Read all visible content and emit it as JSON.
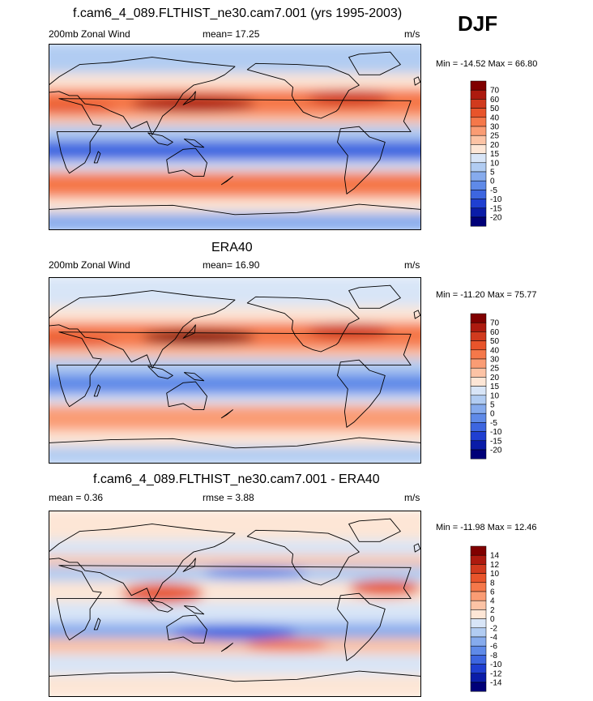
{
  "header": {
    "season": "DJF"
  },
  "chart_data": [
    {
      "type": "heatmap",
      "title": "f.cam6_4_089.FLTHIST_ne30.cam7.001 (yrs 1995-2003)",
      "left_label": "200mb Zonal Wind",
      "center_label": "mean=  17.25",
      "right_label": "m/s",
      "minmax_label": "Min = -14.52 Max =  66.80",
      "min": -14.52,
      "max": 66.8,
      "mean": 17.25,
      "colorbar_levels": [
        "70",
        "60",
        "50",
        "40",
        "30",
        "25",
        "20",
        "15",
        "10",
        "5",
        "0",
        "-5",
        "-10",
        "-15",
        "-20"
      ],
      "colorbar_colors": [
        "#800000",
        "#ad1a0f",
        "#d13a1e",
        "#e8542b",
        "#f5784a",
        "#fa9c74",
        "#fcc3a5",
        "#fde6d6",
        "#d8e5f7",
        "#b1ccf2",
        "#86abed",
        "#5f8ae8",
        "#3d66e0",
        "#1f3fd1",
        "#0a1ca8",
        "#000078"
      ],
      "bands": [
        {
          "lat_range": [
            60,
            90
          ],
          "color": "#b1ccf2"
        },
        {
          "lat_range": [
            45,
            60
          ],
          "color": "#fde6d6"
        },
        {
          "lat_range": [
            20,
            45
          ],
          "color": "#f5784a"
        },
        {
          "lat_range": [
            10,
            20
          ],
          "color": "#fcc3a5"
        },
        {
          "lat_range": [
            -5,
            10
          ],
          "color": "#b1ccf2"
        },
        {
          "lat_range": [
            -25,
            -5
          ],
          "color": "#3d66e0"
        },
        {
          "lat_range": [
            -35,
            -25
          ],
          "color": "#d8e5f7"
        },
        {
          "lat_range": [
            -60,
            -35
          ],
          "color": "#f5784a"
        },
        {
          "lat_range": [
            -75,
            -60
          ],
          "color": "#fde6d6"
        },
        {
          "lat_range": [
            -90,
            -75
          ],
          "color": "#86abed"
        }
      ],
      "jets": [
        {
          "lon": 140,
          "lat": 32,
          "lon_span": 60,
          "lat_span": 8,
          "color": "#ad1a0f"
        },
        {
          "lon": 290,
          "lat": 38,
          "lon_span": 40,
          "lat_span": 8,
          "color": "#d13a1e"
        },
        {
          "lon": 20,
          "lat": 28,
          "lon_span": 45,
          "lat_span": 6,
          "color": "#e8542b"
        }
      ]
    },
    {
      "type": "heatmap",
      "title": "ERA40",
      "left_label": "200mb Zonal Wind",
      "center_label": "mean=  16.90",
      "right_label": "m/s",
      "minmax_label": "Min = -11.20 Max =  75.77",
      "min": -11.2,
      "max": 75.77,
      "mean": 16.9,
      "colorbar_levels": [
        "70",
        "60",
        "50",
        "40",
        "30",
        "25",
        "20",
        "15",
        "10",
        "5",
        "0",
        "-5",
        "-10",
        "-15",
        "-20"
      ],
      "colorbar_colors": [
        "#800000",
        "#ad1a0f",
        "#d13a1e",
        "#e8542b",
        "#f5784a",
        "#fa9c74",
        "#fcc3a5",
        "#fde6d6",
        "#d8e5f7",
        "#b1ccf2",
        "#86abed",
        "#5f8ae8",
        "#3d66e0",
        "#1f3fd1",
        "#0a1ca8",
        "#000078"
      ],
      "bands": [
        {
          "lat_range": [
            60,
            90
          ],
          "color": "#d8e5f7"
        },
        {
          "lat_range": [
            45,
            60
          ],
          "color": "#fde6d6"
        },
        {
          "lat_range": [
            20,
            45
          ],
          "color": "#f5784a"
        },
        {
          "lat_range": [
            10,
            20
          ],
          "color": "#fcc3a5"
        },
        {
          "lat_range": [
            -5,
            10
          ],
          "color": "#b1ccf2"
        },
        {
          "lat_range": [
            -25,
            -5
          ],
          "color": "#5f8ae8"
        },
        {
          "lat_range": [
            -35,
            -25
          ],
          "color": "#d8e5f7"
        },
        {
          "lat_range": [
            -60,
            -35
          ],
          "color": "#fa9c74"
        },
        {
          "lat_range": [
            -75,
            -60
          ],
          "color": "#fde6d6"
        },
        {
          "lat_range": [
            -90,
            -75
          ],
          "color": "#b1ccf2"
        }
      ],
      "jets": [
        {
          "lon": 145,
          "lat": 32,
          "lon_span": 55,
          "lat_span": 7,
          "color": "#800000"
        },
        {
          "lon": 290,
          "lat": 38,
          "lon_span": 40,
          "lat_span": 8,
          "color": "#d13a1e"
        },
        {
          "lon": 15,
          "lat": 28,
          "lon_span": 50,
          "lat_span": 6,
          "color": "#e8542b"
        }
      ]
    },
    {
      "type": "heatmap",
      "title": "f.cam6_4_089.FLTHIST_ne30.cam7.001 - ERA40",
      "left_label": "mean =   0.36",
      "center_label": "rmse =   3.88",
      "right_label": "m/s",
      "minmax_label": "Min = -11.98 Max =  12.46",
      "min": -11.98,
      "max": 12.46,
      "mean": 0.36,
      "rmse": 3.88,
      "colorbar_levels": [
        "14",
        "12",
        "10",
        "8",
        "6",
        "4",
        "2",
        "0",
        "-2",
        "-4",
        "-6",
        "-8",
        "-10",
        "-12",
        "-14"
      ],
      "colorbar_colors": [
        "#800000",
        "#ad1a0f",
        "#d13a1e",
        "#e8542b",
        "#f5784a",
        "#fa9c74",
        "#fcc3a5",
        "#fde6d6",
        "#d8e5f7",
        "#b1ccf2",
        "#86abed",
        "#5f8ae8",
        "#3d66e0",
        "#1f3fd1",
        "#0a1ca8",
        "#000078"
      ],
      "bands": [
        {
          "lat_range": [
            60,
            90
          ],
          "color": "#fde6d6"
        },
        {
          "lat_range": [
            45,
            60
          ],
          "color": "#d8e5f7"
        },
        {
          "lat_range": [
            35,
            45
          ],
          "color": "#fcc3a5"
        },
        {
          "lat_range": [
            20,
            35
          ],
          "color": "#b1ccf2"
        },
        {
          "lat_range": [
            0,
            20
          ],
          "color": "#fde6d6"
        },
        {
          "lat_range": [
            -20,
            0
          ],
          "color": "#d8e5f7"
        },
        {
          "lat_range": [
            -35,
            -20
          ],
          "color": "#86abed"
        },
        {
          "lat_range": [
            -50,
            -35
          ],
          "color": "#fcc3a5"
        },
        {
          "lat_range": [
            -70,
            -50
          ],
          "color": "#d8e5f7"
        },
        {
          "lat_range": [
            -90,
            -70
          ],
          "color": "#fde6d6"
        }
      ],
      "jets": [
        {
          "lon": 180,
          "lat": -28,
          "lon_span": 60,
          "lat_span": 8,
          "color": "#3d66e0"
        },
        {
          "lon": 110,
          "lat": 10,
          "lon_span": 40,
          "lat_span": 10,
          "color": "#e8542b"
        },
        {
          "lon": 325,
          "lat": 15,
          "lon_span": 35,
          "lat_span": 8,
          "color": "#e8542b"
        },
        {
          "lon": 230,
          "lat": -40,
          "lon_span": 40,
          "lat_span": 6,
          "color": "#f5784a"
        },
        {
          "lon": 200,
          "lat": 30,
          "lon_span": 50,
          "lat_span": 6,
          "color": "#5f8ae8"
        }
      ]
    }
  ]
}
